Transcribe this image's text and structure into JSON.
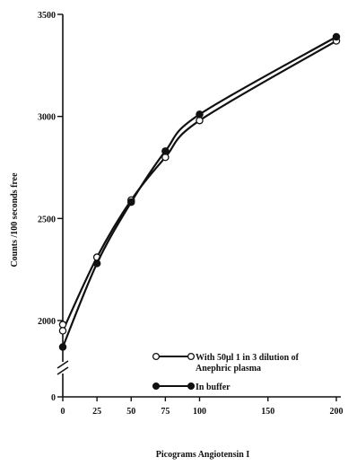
{
  "chart_data": {
    "type": "line",
    "title": "",
    "xlabel": "Picograms Angiotensin I",
    "ylabel": "Counts /100 seconds free",
    "xlim": [
      0,
      200
    ],
    "ylim": [
      1700,
      3500
    ],
    "x_ticks": [
      0,
      25,
      50,
      75,
      100,
      150,
      200
    ],
    "x_tick_labels": [
      "0",
      "25",
      "50",
      "75",
      "100",
      "150",
      "200"
    ],
    "y_ticks": [
      2000,
      2500,
      3000,
      3500
    ],
    "y_tick_labels": [
      "2000",
      "2500",
      "3000",
      "3500"
    ],
    "y_zero_label": "0",
    "y_axis_break": true,
    "grid": false,
    "legend_position": "bottom-right",
    "series": [
      {
        "name": "With 50μl 1 in 3 dilution of Anephric plasma",
        "legend_lines": [
          "With 50μl 1 in 3 dilution of",
          "Anephric plasma"
        ],
        "marker": "open-circle",
        "x": [
          0,
          0,
          25,
          50,
          75,
          100,
          200
        ],
        "y": [
          1980,
          1950,
          2310,
          2590,
          2800,
          2980,
          3370
        ]
      },
      {
        "name": "In buffer",
        "legend_lines": [
          "In buffer"
        ],
        "marker": "filled-circle",
        "x": [
          0,
          25,
          50,
          75,
          100,
          200
        ],
        "y": [
          1870,
          2280,
          2580,
          2830,
          3010,
          3390
        ]
      }
    ]
  }
}
